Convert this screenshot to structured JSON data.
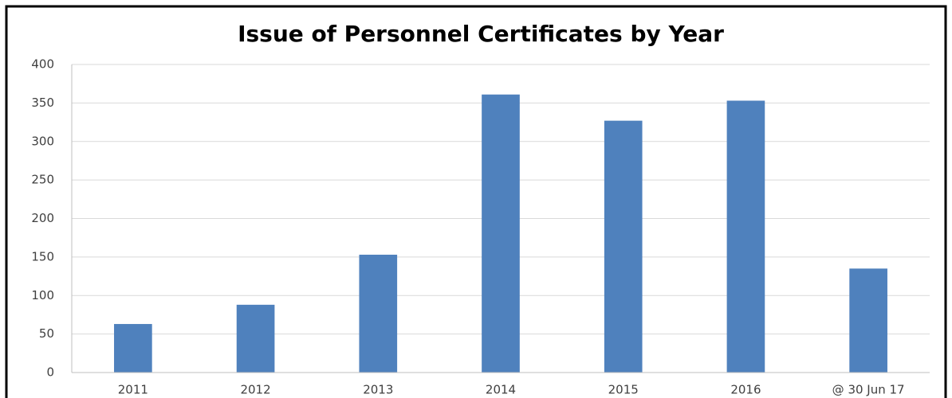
{
  "chart_data": {
    "type": "bar",
    "title": "Issue of Personnel Certificates by Year",
    "categories": [
      "2011",
      "2012",
      "2013",
      "2014",
      "2015",
      "2016",
      "@ 30 Jun 17"
    ],
    "values": [
      63,
      88,
      153,
      361,
      327,
      353,
      135
    ],
    "color": "#4f81bd",
    "ylim": [
      0,
      400
    ],
    "yticks": [
      0,
      50,
      100,
      150,
      200,
      250,
      300,
      350,
      400
    ],
    "grid": true
  }
}
